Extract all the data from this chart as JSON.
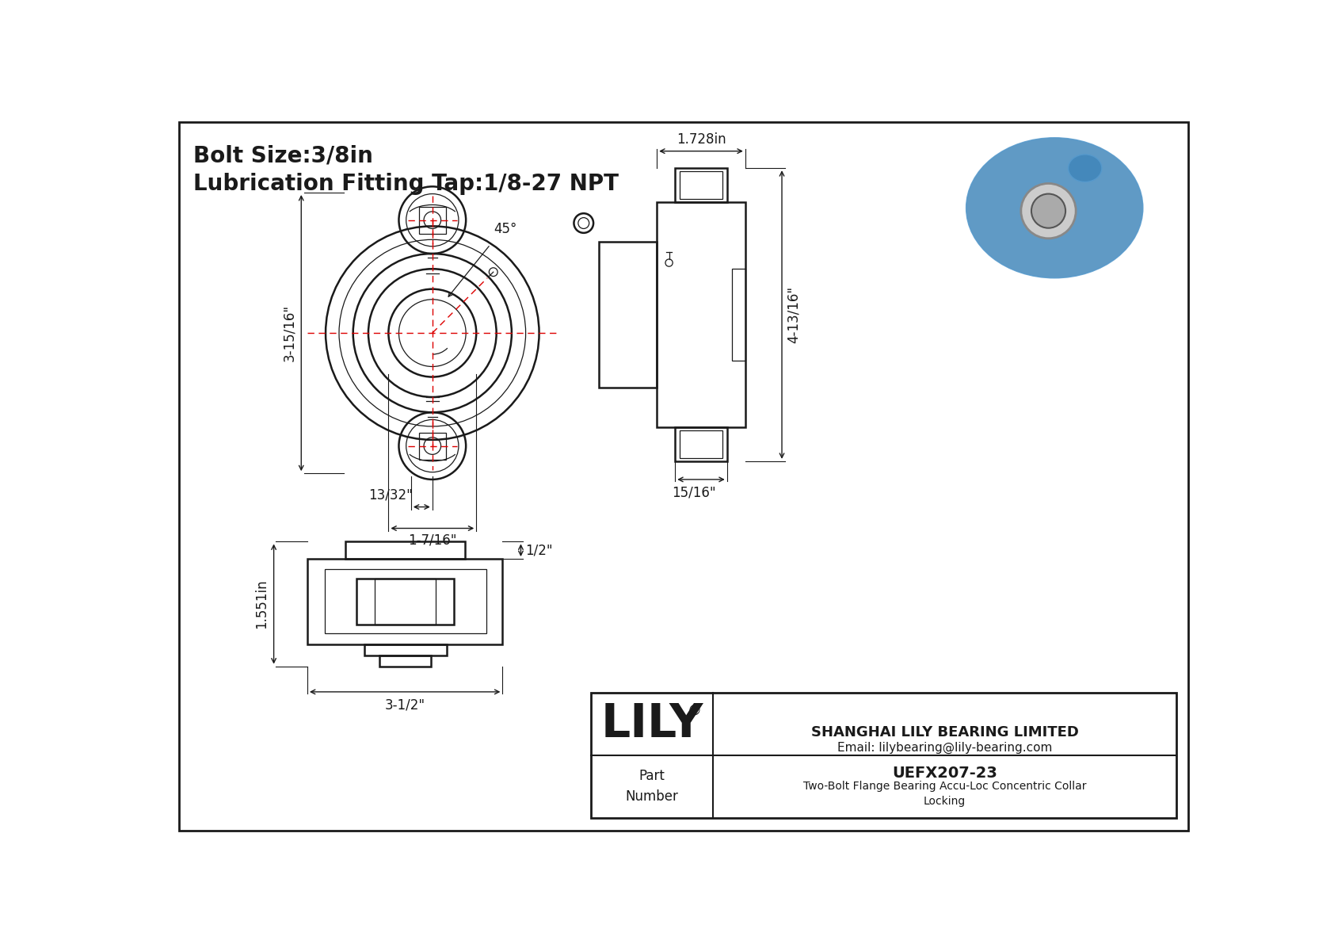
{
  "bg_color": "#ffffff",
  "line_color": "#1a1a1a",
  "red_color": "#dd0000",
  "title_line1": "Bolt Size:3/8in",
  "title_line2": "Lubrication Fitting Tap:1/8-27 NPT",
  "title_fontsize": 20,
  "dim_fontsize": 12,
  "logo_text": "LILY",
  "logo_sup": "®",
  "company_line1": "SHANGHAI LILY BEARING LIMITED",
  "company_line2": "Email: lilybearing@lily-bearing.com",
  "part_label": "Part\nNumber",
  "part_number": "UEFX207-23",
  "part_desc": "Two-Bolt Flange Bearing Accu-Loc Concentric Collar\nLocking",
  "dim_45": "45°",
  "dim_3_15_16": "3-15/16\"",
  "dim_13_32": "13/32\"",
  "dim_1_7_16": "1-7/16\"",
  "dim_1_728in": "1.728in",
  "dim_4_13_16": "4-13/16\"",
  "dim_15_16": "15/16\"",
  "dim_1_551in": "1.551in",
  "dim_half": "1/2\"",
  "dim_3_half": "3-1/2\""
}
